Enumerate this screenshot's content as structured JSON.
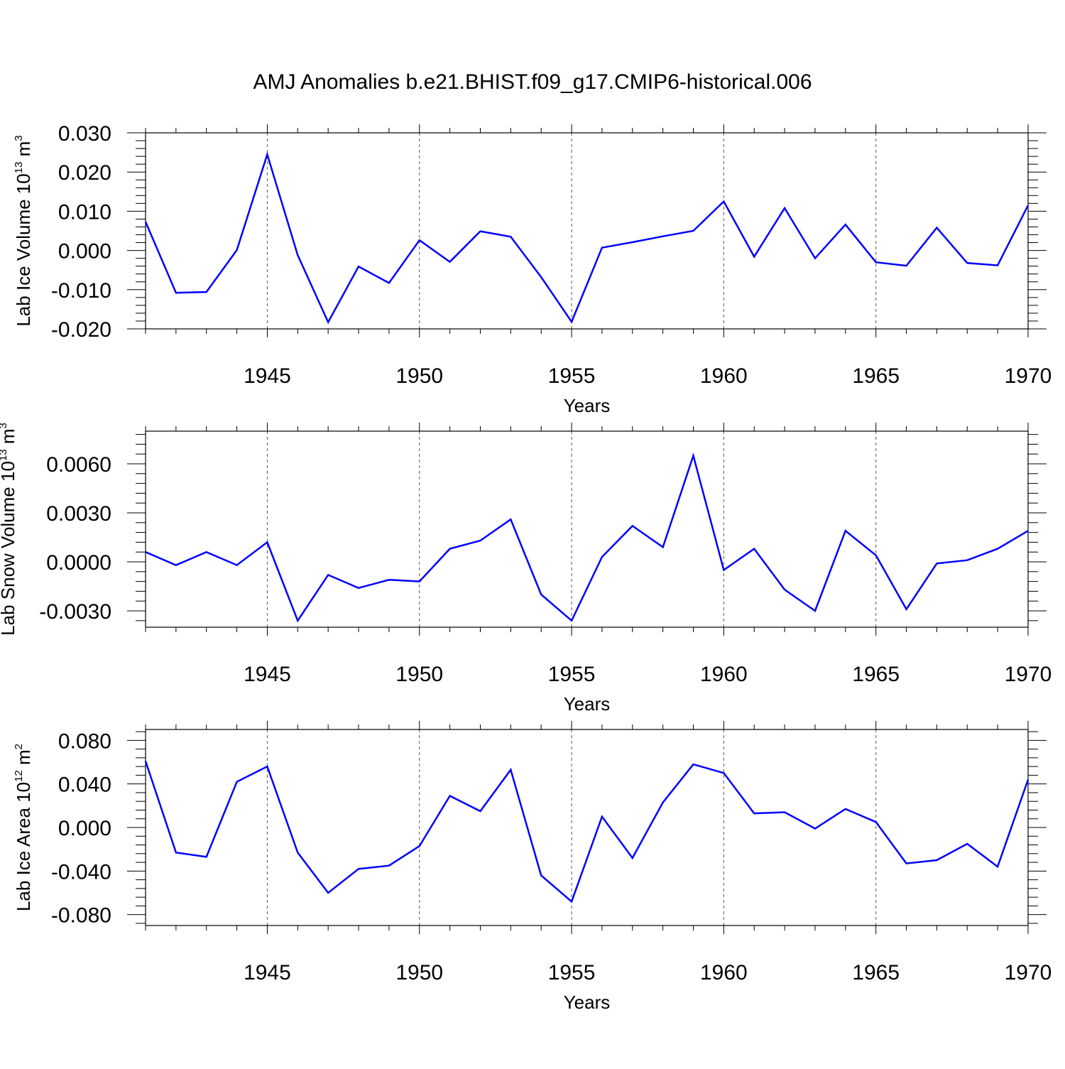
{
  "chart_data": {
    "title": "AMJ Anomalies b.e21.BHIST.f09_g17.CMIP6-historical.006",
    "type": "line",
    "x": [
      1941,
      1942,
      1943,
      1944,
      1945,
      1946,
      1947,
      1948,
      1949,
      1950,
      1951,
      1952,
      1953,
      1954,
      1955,
      1956,
      1957,
      1958,
      1959,
      1960,
      1961,
      1962,
      1963,
      1964,
      1965,
      1966,
      1967,
      1968,
      1969,
      1970
    ],
    "xlim": [
      1941,
      1970
    ],
    "xticks": [
      1945,
      1950,
      1955,
      1960,
      1965,
      1970
    ],
    "color": "#0000ff",
    "panels": [
      {
        "ylabel": "Lab Ice Volume 10",
        "ylabel_exp": "13",
        "ylabel_unit": " m",
        "ylabel_unit_exp": "3",
        "xlabel": "Years",
        "ylim": [
          -0.02,
          0.03
        ],
        "yticks": [
          -0.02,
          -0.01,
          0.0,
          0.01,
          0.02,
          0.03
        ],
        "ytick_labels": [
          "-0.020",
          "-0.010",
          "0.000",
          "0.010",
          "0.020",
          "0.030"
        ],
        "values": [
          0.0073,
          -0.0108,
          -0.0106,
          0.0001,
          0.0245,
          -0.0012,
          -0.0183,
          -0.0041,
          -0.0083,
          0.0026,
          -0.0029,
          0.0049,
          0.0035,
          -0.0068,
          -0.0182,
          0.0007,
          0.0021,
          0.0036,
          0.005,
          0.0125,
          -0.0016,
          0.0108,
          -0.002,
          0.0066,
          -0.003,
          -0.0039,
          0.0058,
          -0.0032,
          -0.0038,
          0.0115
        ]
      },
      {
        "ylabel": "Lab Snow Volume 10",
        "ylabel_exp": "13",
        "ylabel_unit": " m",
        "ylabel_unit_exp": "3",
        "xlabel": "Years",
        "ylim": [
          -0.004,
          0.008
        ],
        "yticks": [
          -0.003,
          0.0,
          0.003,
          0.006
        ],
        "ytick_labels": [
          "-0.0030",
          "0.0000",
          "0.0030",
          "0.0060"
        ],
        "values": [
          0.0006,
          -0.0002,
          0.0006,
          -0.0002,
          0.0012,
          -0.0036,
          -0.0008,
          -0.0016,
          -0.0011,
          -0.0012,
          0.0008,
          0.0013,
          0.0026,
          -0.002,
          -0.0036,
          0.0003,
          0.0022,
          0.0009,
          0.0065,
          -0.0005,
          0.0008,
          -0.0017,
          -0.003,
          0.0019,
          0.0004,
          -0.0029,
          -0.0001,
          0.0001,
          0.0008,
          0.0019
        ]
      },
      {
        "ylabel": "Lab Ice Area 10",
        "ylabel_exp": "12",
        "ylabel_unit": " m",
        "ylabel_unit_exp": "2",
        "xlabel": "Years",
        "ylim": [
          -0.09,
          0.09
        ],
        "yticks": [
          -0.08,
          -0.04,
          0.0,
          0.04,
          0.08
        ],
        "ytick_labels": [
          "-0.080",
          "-0.040",
          "0.000",
          "0.040",
          "0.080"
        ],
        "values": [
          0.061,
          -0.023,
          -0.027,
          0.042,
          0.056,
          -0.023,
          -0.06,
          -0.038,
          -0.035,
          -0.017,
          0.029,
          0.015,
          0.053,
          -0.044,
          -0.068,
          0.01,
          -0.028,
          0.023,
          0.058,
          0.05,
          0.013,
          0.014,
          -0.001,
          0.017,
          0.005,
          -0.033,
          -0.03,
          -0.015,
          -0.036,
          0.044
        ]
      }
    ]
  }
}
